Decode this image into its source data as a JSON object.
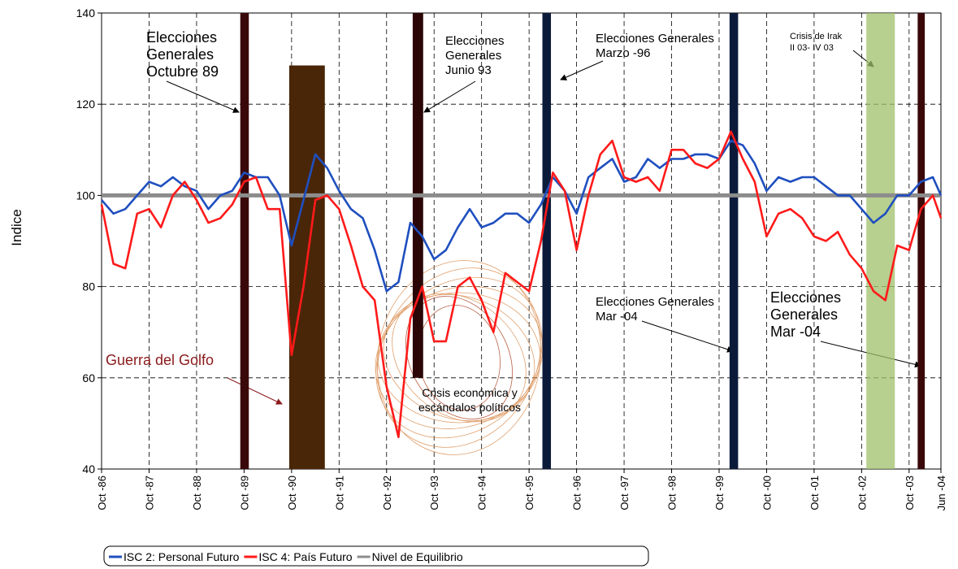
{
  "chart_data": {
    "type": "line",
    "y_label": "Indice",
    "xlim": [
      1986.75,
      2004.42
    ],
    "ylim": [
      40,
      140
    ],
    "yticks": [
      40,
      60,
      80,
      100,
      120,
      140
    ],
    "xticks": [
      {
        "value": 1986.75,
        "label": "Oct -86"
      },
      {
        "value": 1987.75,
        "label": "Oct -87"
      },
      {
        "value": 1988.75,
        "label": "Oct -88"
      },
      {
        "value": 1989.75,
        "label": "Oct -89"
      },
      {
        "value": 1990.75,
        "label": "Oct -90"
      },
      {
        "value": 1991.75,
        "label": "Oct -91"
      },
      {
        "value": 1992.75,
        "label": "Oct -92"
      },
      {
        "value": 1993.75,
        "label": "Oct -93"
      },
      {
        "value": 1994.75,
        "label": "Oct -94"
      },
      {
        "value": 1995.75,
        "label": "Oct -95"
      },
      {
        "value": 1996.75,
        "label": "Oct -96"
      },
      {
        "value": 1997.75,
        "label": "Oct -97"
      },
      {
        "value": 1998.75,
        "label": "Oct -98"
      },
      {
        "value": 1999.75,
        "label": "Oct -99"
      },
      {
        "value": 2000.75,
        "label": "Oct -00"
      },
      {
        "value": 2001.75,
        "label": "Oct -01"
      },
      {
        "value": 2002.75,
        "label": "Oct -02"
      },
      {
        "value": 2003.75,
        "label": "Oct -03"
      },
      {
        "value": 2004.42,
        "label": "Jun -04"
      }
    ],
    "grid": true,
    "x": [
      1986.75,
      1987.0,
      1987.25,
      1987.5,
      1987.75,
      1988.0,
      1988.25,
      1988.5,
      1988.75,
      1989.0,
      1989.25,
      1989.5,
      1989.75,
      1990.0,
      1990.25,
      1990.5,
      1990.75,
      1991.0,
      1991.25,
      1991.5,
      1991.75,
      1992.0,
      1992.25,
      1992.5,
      1992.75,
      1993.0,
      1993.25,
      1993.5,
      1993.75,
      1994.0,
      1994.25,
      1994.5,
      1994.75,
      1995.0,
      1995.25,
      1995.5,
      1995.75,
      1996.0,
      1996.25,
      1996.5,
      1996.75,
      1997.0,
      1997.25,
      1997.5,
      1997.75,
      1998.0,
      1998.25,
      1998.5,
      1998.75,
      1999.0,
      1999.25,
      1999.5,
      1999.75,
      2000.0,
      2000.25,
      2000.5,
      2000.75,
      2001.0,
      2001.25,
      2001.5,
      2001.75,
      2002.0,
      2002.25,
      2002.5,
      2002.75,
      2003.0,
      2003.25,
      2003.5,
      2003.75,
      2004.0,
      2004.25,
      2004.42
    ],
    "series": [
      {
        "name": "ISC 2: Personal Futuro",
        "color": "#1f4fbf",
        "values": [
          99,
          96,
          97,
          100,
          103,
          102,
          104,
          102,
          101,
          97,
          100,
          101,
          105,
          104,
          104,
          100,
          89,
          99,
          109,
          106,
          101,
          97,
          95,
          88,
          79,
          81,
          94,
          91,
          86,
          88,
          93,
          97,
          93,
          94,
          96,
          96,
          94,
          98,
          104,
          101,
          96,
          104,
          106,
          108,
          103,
          104,
          108,
          106,
          108,
          108,
          109,
          109,
          108,
          112,
          111,
          107,
          101,
          104,
          103,
          104,
          104,
          102,
          100,
          100,
          97,
          94,
          96,
          100,
          100,
          103,
          104,
          100
        ]
      },
      {
        "name": "ISC 4: País Futuro",
        "color": "#ff1a1a",
        "values": [
          98,
          85,
          84,
          96,
          97,
          93,
          100,
          103,
          99,
          94,
          95,
          98,
          103,
          104,
          97,
          97,
          65,
          80,
          99,
          100,
          97,
          89,
          80,
          77,
          58,
          47,
          73,
          80,
          68,
          68,
          80,
          82,
          77,
          70,
          83,
          81,
          79,
          90,
          105,
          101,
          88,
          100,
          109,
          112,
          104,
          103,
          104,
          101,
          110,
          110,
          107,
          106,
          108,
          114,
          108,
          103,
          91,
          96,
          97,
          95,
          91,
          90,
          92,
          87,
          84,
          79,
          77,
          89,
          88,
          97,
          100,
          95
        ]
      },
      {
        "name": "Nivel de Equilibrio",
        "color": "#8c8c8c",
        "x": [
          1986.75,
          2004.42
        ],
        "values": [
          100,
          100
        ]
      }
    ],
    "bands": [
      {
        "x0": 1989.67,
        "x1": 1989.85,
        "y0": 40,
        "y1": 140,
        "color": "#3a0808"
      },
      {
        "x0": 1990.7,
        "x1": 1991.45,
        "y0": 40,
        "y1": 128.5,
        "color": "#4a2608"
      },
      {
        "x0": 1993.3,
        "x1": 1993.52,
        "y0": 60,
        "y1": 140,
        "color": "#2a0606"
      },
      {
        "x0": 1996.03,
        "x1": 1996.21,
        "y0": 40,
        "y1": 140,
        "color": "#0c1a3a"
      },
      {
        "x0": 1999.97,
        "x1": 2000.15,
        "y0": 40,
        "y1": 140,
        "color": "#0c1a3a"
      },
      {
        "x0": 2002.85,
        "x1": 2003.45,
        "y0": 40,
        "y1": 140,
        "color": "#9fbf6a"
      },
      {
        "x0": 2003.93,
        "x1": 2004.08,
        "y0": 40,
        "y1": 140,
        "color": "#3a0808"
      }
    ],
    "annotations": [
      {
        "lines": [
          "Elecciones",
          "Generales",
          "Octubre 89"
        ]
      },
      {
        "lines": [
          "Elecciones",
          "Generales",
          "Junio 93"
        ]
      },
      {
        "lines": [
          "Elecciones Generales",
          "Marzo -96"
        ]
      },
      {
        "lines": [
          "Crisis de Irak",
          "II 03- IV 03"
        ]
      },
      {
        "lines": [
          "Elecciones Generales",
          "Mar -04"
        ]
      },
      {
        "lines": [
          "Elecciones",
          "Generales",
          "Mar -04"
        ]
      },
      {
        "lines": [
          "Guerra del Golfo"
        ]
      },
      {
        "lines": [
          "Crisis económica y",
          "escándalos políticos"
        ]
      }
    ]
  }
}
